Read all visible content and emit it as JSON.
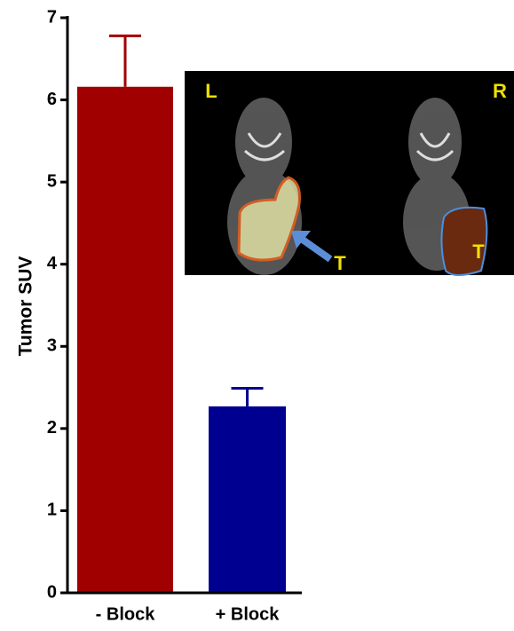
{
  "chart_data": {
    "type": "bar",
    "ylabel": "Tumor SUV",
    "categories": [
      "- Block",
      "+ Block"
    ],
    "values": [
      6.16,
      2.27
    ],
    "errors": [
      0.62,
      0.22
    ],
    "colors": [
      "#a00000",
      "#000090"
    ],
    "ylim": [
      0,
      7
    ],
    "yticks": [
      0,
      1,
      2,
      3,
      4,
      5,
      6,
      7
    ],
    "inset_labels": [
      "L",
      "R",
      "T",
      "T"
    ]
  }
}
